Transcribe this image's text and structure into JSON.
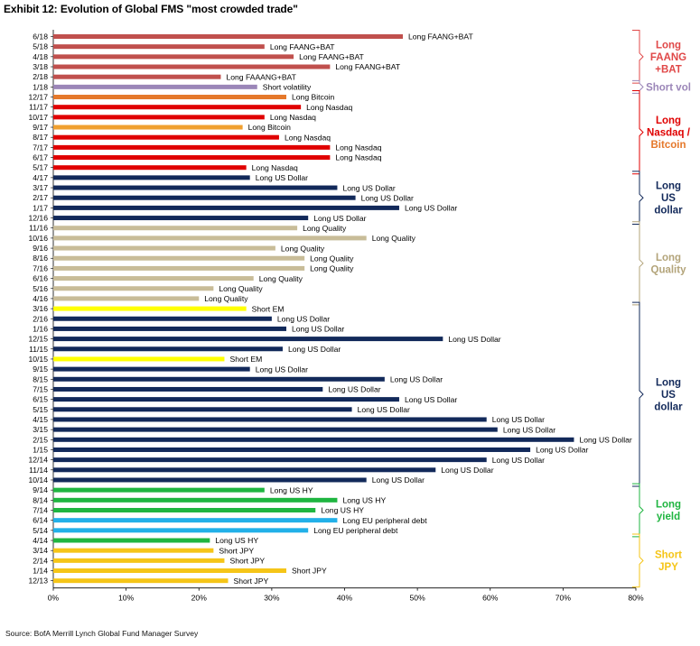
{
  "title": "Exhibit 12: Evolution of Global FMS \"most crowded trade\"",
  "source": "Source: BofA Merrill Lynch Global Fund Manager Survey",
  "chart_data": {
    "type": "bar",
    "orientation": "horizontal",
    "title": "Exhibit 12: Evolution of Global FMS \"most crowded trade\"",
    "xlim": [
      0,
      80
    ],
    "xticks": [
      "0%",
      "10%",
      "20%",
      "30%",
      "40%",
      "50%",
      "60%",
      "70%",
      "80%"
    ],
    "xtick_values": [
      0,
      10,
      20,
      30,
      40,
      50,
      60,
      70,
      80
    ],
    "bars": [
      {
        "date": "6/18",
        "label": "Long FAANG+BAT",
        "value": 48,
        "color": "#c0504d"
      },
      {
        "date": "5/18",
        "label": "Long FAANG+BAT",
        "value": 29,
        "color": "#c0504d"
      },
      {
        "date": "4/18",
        "label": "Long FAANG+BAT",
        "value": 33,
        "color": "#c0504d"
      },
      {
        "date": "3/18",
        "label": "Long FAANG+BAT",
        "value": 38,
        "color": "#c0504d"
      },
      {
        "date": "2/18",
        "label": "Long FAAANG+BAT",
        "value": 23,
        "color": "#c0504d"
      },
      {
        "date": "1/18",
        "label": "Short volatility",
        "value": 28,
        "color": "#9b86b8"
      },
      {
        "date": "12/17",
        "label": "Long Bitcoin",
        "value": 32,
        "color": "#e5782a"
      },
      {
        "date": "11/17",
        "label": "Long Nasdaq",
        "value": 34,
        "color": "#e00000"
      },
      {
        "date": "10/17",
        "label": "Long Nasdaq",
        "value": 29,
        "color": "#e00000"
      },
      {
        "date": "9/17",
        "label": "Long Bitcoin",
        "value": 26,
        "color": "#f0a030"
      },
      {
        "date": "8/17",
        "label": "Long Nasdaq",
        "value": 31,
        "color": "#e00000"
      },
      {
        "date": "7/17",
        "label": "Long Nasdaq",
        "value": 38,
        "color": "#e00000"
      },
      {
        "date": "6/17",
        "label": "Long Nasdaq",
        "value": 38,
        "color": "#e00000"
      },
      {
        "date": "5/17",
        "label": "Long Nasdaq",
        "value": 26.5,
        "color": "#e00000"
      },
      {
        "date": "4/17",
        "label": "Long US Dollar",
        "value": 27,
        "color": "#12295a"
      },
      {
        "date": "3/17",
        "label": "Long US Dollar",
        "value": 39,
        "color": "#12295a"
      },
      {
        "date": "2/17",
        "label": "Long US Dollar",
        "value": 41.5,
        "color": "#12295a"
      },
      {
        "date": "1/17",
        "label": "Long US Dollar",
        "value": 47.5,
        "color": "#12295a"
      },
      {
        "date": "12/16",
        "label": "Long US Dollar",
        "value": 35,
        "color": "#12295a"
      },
      {
        "date": "11/16",
        "label": "Long Quality",
        "value": 33.5,
        "color": "#c8bc98"
      },
      {
        "date": "10/16",
        "label": "Long Quality",
        "value": 43,
        "color": "#c8bc98"
      },
      {
        "date": "9/16",
        "label": "Long Quality",
        "value": 30.5,
        "color": "#c8bc98"
      },
      {
        "date": "8/16",
        "label": "Long Quality",
        "value": 34.5,
        "color": "#c8bc98"
      },
      {
        "date": "7/16",
        "label": "Long Quality",
        "value": 34.5,
        "color": "#c8bc98"
      },
      {
        "date": "6/16",
        "label": "Long Quality",
        "value": 27.5,
        "color": "#c8bc98"
      },
      {
        "date": "5/16",
        "label": "Long Quality",
        "value": 22,
        "color": "#c8bc98"
      },
      {
        "date": "4/16",
        "label": "Long Quality",
        "value": 20,
        "color": "#c8bc98"
      },
      {
        "date": "3/16",
        "label": "Short EM",
        "value": 26.5,
        "color": "#ffff00"
      },
      {
        "date": "2/16",
        "label": "Long US Dollar",
        "value": 30,
        "color": "#12295a"
      },
      {
        "date": "1/16",
        "label": "Long US Dollar",
        "value": 32,
        "color": "#12295a"
      },
      {
        "date": "12/15",
        "label": "Long US Dollar",
        "value": 53.5,
        "color": "#12295a"
      },
      {
        "date": "11/15",
        "label": "Long US Dollar",
        "value": 31.5,
        "color": "#12295a"
      },
      {
        "date": "10/15",
        "label": "Short EM",
        "value": 23.5,
        "color": "#ffff00"
      },
      {
        "date": "9/15",
        "label": "Long US Dollar",
        "value": 27,
        "color": "#12295a"
      },
      {
        "date": "8/15",
        "label": "Long US Dollar",
        "value": 45.5,
        "color": "#12295a"
      },
      {
        "date": "7/15",
        "label": "Long US Dollar",
        "value": 37,
        "color": "#12295a"
      },
      {
        "date": "6/15",
        "label": "Long US Dollar",
        "value": 47.5,
        "color": "#12295a"
      },
      {
        "date": "5/15",
        "label": "Long US Dollar",
        "value": 41,
        "color": "#12295a"
      },
      {
        "date": "4/15",
        "label": "Long US Dollar",
        "value": 59.5,
        "color": "#12295a"
      },
      {
        "date": "3/15",
        "label": "Long US Dollar",
        "value": 61,
        "color": "#12295a"
      },
      {
        "date": "2/15",
        "label": "Long US Dollar",
        "value": 71.5,
        "color": "#12295a"
      },
      {
        "date": "1/15",
        "label": "Long US Dollar",
        "value": 65.5,
        "color": "#12295a"
      },
      {
        "date": "12/14",
        "label": "Long US Dollar",
        "value": 59.5,
        "color": "#12295a"
      },
      {
        "date": "11/14",
        "label": "Long US Dollar",
        "value": 52.5,
        "color": "#12295a"
      },
      {
        "date": "10/14",
        "label": "Long US Dollar",
        "value": 43,
        "color": "#12295a"
      },
      {
        "date": "9/14",
        "label": "Long US HY",
        "value": 29,
        "color": "#1fb540"
      },
      {
        "date": "8/14",
        "label": "Long US HY",
        "value": 39,
        "color": "#1fb540"
      },
      {
        "date": "7/14",
        "label": "Long US HY",
        "value": 36,
        "color": "#1fb540"
      },
      {
        "date": "6/14",
        "label": "Long EU peripheral debt",
        "value": 39,
        "color": "#22b0e8"
      },
      {
        "date": "5/14",
        "label": "Long EU peripheral debt",
        "value": 35,
        "color": "#22b0e8"
      },
      {
        "date": "4/14",
        "label": "Long US HY",
        "value": 21.5,
        "color": "#1fb540"
      },
      {
        "date": "3/14",
        "label": "Short JPY",
        "value": 22,
        "color": "#f5c518"
      },
      {
        "date": "2/14",
        "label": "Short JPY",
        "value": 23.5,
        "color": "#f5c518"
      },
      {
        "date": "1/14",
        "label": "Short JPY",
        "value": 32,
        "color": "#f5c518"
      },
      {
        "date": "12/13",
        "label": "Short JPY",
        "value": 24,
        "color": "#f5c518"
      }
    ],
    "groups": [
      {
        "lines": [
          "Long",
          "FAANG",
          "+BAT"
        ],
        "from": 0,
        "to": 4,
        "color": "#e04848",
        "text_color": "#e04848"
      },
      {
        "lines": [
          "Short vol"
        ],
        "from": 5,
        "to": 5,
        "color": "#9b86b8",
        "text_color": "#9b86b8"
      },
      {
        "lines": [
          "Long",
          "Nasdaq /",
          "Bitcoin"
        ],
        "from": 6,
        "to": 13,
        "color": "#e00000",
        "text_color": "#e00000",
        "last_line_color": "#e5782a"
      },
      {
        "lines": [
          "Long",
          "US",
          "dollar"
        ],
        "from": 14,
        "to": 18,
        "color": "#12295a",
        "text_color": "#12295a"
      },
      {
        "lines": [
          "Long",
          "Quality"
        ],
        "from": 19,
        "to": 26,
        "color": "#b3a47a",
        "text_color": "#b3a47a"
      },
      {
        "lines": [
          "Long",
          "US",
          "dollar"
        ],
        "from": 27,
        "to": 44,
        "color": "#12295a",
        "text_color": "#12295a"
      },
      {
        "lines": [
          "Long",
          "yield"
        ],
        "from": 45,
        "to": 49,
        "color": "#1fb540",
        "text_color": "#1fb540"
      },
      {
        "lines": [
          "Short",
          "JPY"
        ],
        "from": 50,
        "to": 54,
        "color": "#f5c518",
        "text_color": "#f5c518"
      }
    ]
  }
}
